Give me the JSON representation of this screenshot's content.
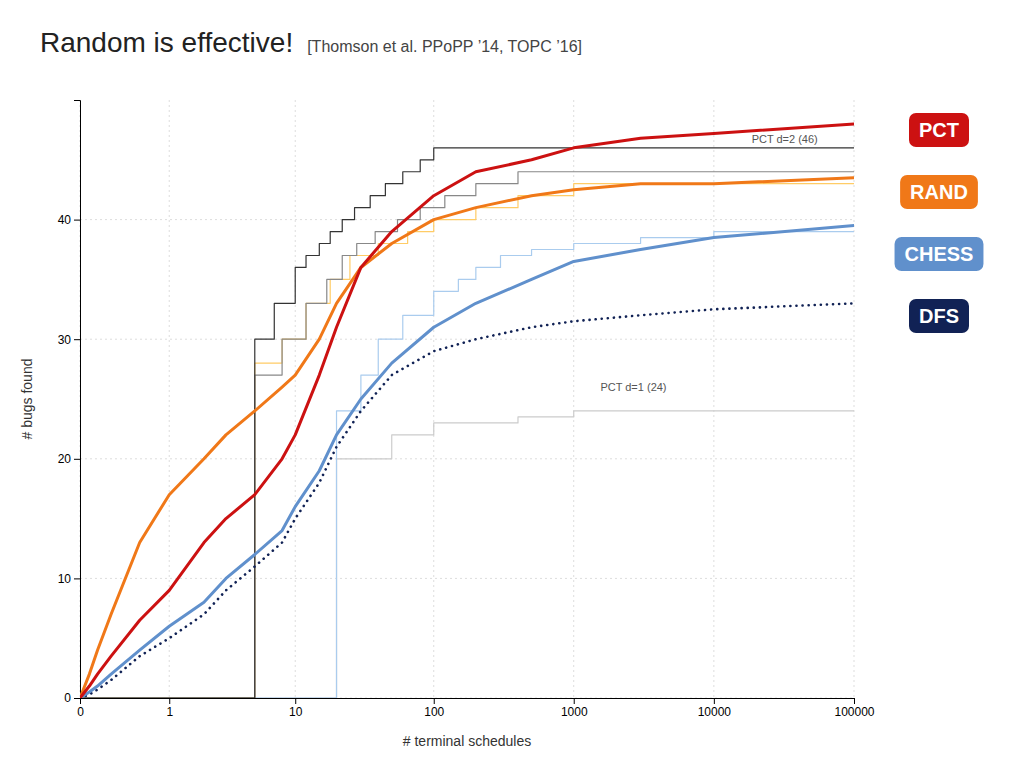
{
  "chart_data": {
    "type": "line",
    "title": "Random is effective!",
    "subtitle": "[Thomson et al. PPoPP ’14, TOPC ’16]",
    "x_label": "# terminal schedules",
    "y_label": "# bugs found",
    "log": "x",
    "grid": true,
    "xlim": [
      0,
      100000
    ],
    "xticks": [
      0,
      1,
      10,
      100,
      1000,
      10000,
      100000
    ],
    "ylim": [
      0,
      50
    ],
    "yticks": [
      0,
      10,
      20,
      30,
      40
    ],
    "series": [
      {
        "type": "step",
        "color": "#cccccc",
        "x": [
          0.01,
          20,
          50,
          100,
          400,
          1000,
          5000,
          100000
        ],
        "values": [
          0,
          20,
          22,
          23,
          23.5,
          24,
          24,
          24
        ]
      },
      {
        "type": "step",
        "color": "#aaccee",
        "x": [
          0.01,
          20,
          30,
          40,
          60,
          100,
          150,
          200,
          300,
          500,
          1000,
          3000,
          10000,
          100000
        ],
        "values": [
          0,
          24,
          27,
          30,
          32,
          34,
          35,
          36,
          37,
          37.5,
          38,
          38.5,
          39,
          39
        ]
      },
      {
        "type": "step",
        "color": "#ffcc66",
        "x": [
          0.01,
          5,
          8,
          12,
          18,
          25,
          40,
          65,
          100,
          200,
          400,
          1000,
          100000
        ],
        "values": [
          0,
          28,
          30,
          33,
          35,
          37,
          38,
          39,
          40,
          41,
          42,
          43,
          43
        ]
      },
      {
        "type": "step",
        "color": "#888888",
        "x": [
          0.01,
          5,
          8,
          12,
          17,
          22,
          28,
          38,
          55,
          80,
          120,
          200,
          400,
          100000
        ],
        "values": [
          0,
          27,
          30,
          33,
          35,
          37,
          38,
          39,
          40,
          41,
          42,
          43,
          44,
          44
        ]
      },
      {
        "type": "step",
        "color": "#333333",
        "x": [
          0.01,
          5,
          7,
          10,
          12,
          15,
          18,
          22,
          27,
          35,
          45,
          60,
          80,
          100,
          130,
          200,
          400,
          100000
        ],
        "values": [
          0,
          30,
          33,
          36,
          37,
          38,
          39,
          40,
          41,
          42,
          43,
          44,
          45,
          46,
          46,
          46,
          46,
          46
        ]
      },
      {
        "name": "DFS",
        "type": "line",
        "line_style": "dotted",
        "color": "#112255",
        "x": [
          0,
          0.05,
          0.1,
          0.2,
          0.5,
          1,
          2,
          3,
          5,
          8,
          10,
          15,
          20,
          30,
          50,
          100,
          200,
          500,
          1000,
          3000,
          10000,
          100000
        ],
        "values": [
          0,
          0.3,
          0.7,
          1.5,
          3.5,
          5,
          7,
          9,
          11,
          13,
          15,
          18,
          21,
          24,
          27,
          29,
          30,
          31,
          31.5,
          32,
          32.5,
          33
        ]
      },
      {
        "name": "CHESS",
        "type": "line",
        "color": "#6090cc",
        "x": [
          0,
          0.05,
          0.1,
          0.2,
          0.5,
          1,
          2,
          3,
          5,
          8,
          10,
          15,
          20,
          30,
          50,
          100,
          200,
          500,
          1000,
          3000,
          10000,
          100000
        ],
        "values": [
          0,
          0.5,
          1.0,
          2.0,
          4.0,
          6,
          8,
          10,
          12,
          14,
          16,
          19,
          22,
          25,
          28,
          31,
          33,
          35,
          36.5,
          37.5,
          38.5,
          39.5
        ]
      },
      {
        "name": "RAND",
        "type": "line",
        "color": "#f07818",
        "x": [
          0,
          0.05,
          0.1,
          0.2,
          0.5,
          1,
          2,
          3,
          5,
          8,
          10,
          15,
          20,
          30,
          50,
          100,
          200,
          500,
          1000,
          3000,
          10000,
          100000
        ],
        "values": [
          0,
          2.0,
          4.0,
          7.0,
          13,
          17,
          20,
          22,
          24,
          26,
          27,
          30,
          33,
          36,
          38,
          40,
          41,
          42,
          42.5,
          43,
          43,
          43.5
        ]
      },
      {
        "name": "PCT",
        "type": "line",
        "color": "#cc1111",
        "x": [
          0,
          0.05,
          0.1,
          0.2,
          0.5,
          1,
          2,
          3,
          5,
          8,
          10,
          15,
          20,
          30,
          50,
          100,
          200,
          500,
          1000,
          3000,
          10000,
          100000
        ],
        "values": [
          0,
          1.0,
          2.0,
          3.5,
          6.5,
          9,
          13,
          15,
          17,
          20,
          22,
          27,
          31,
          36,
          39,
          42,
          44,
          45,
          46,
          46.8,
          47.2,
          48
        ]
      }
    ],
    "annotations": [
      {
        "text": "PCT d=2 (46)",
        "x": 18000,
        "y": 46.2
      },
      {
        "text": "PCT d=1 (24)",
        "x": 1500,
        "y": 25.5
      }
    ]
  }
}
